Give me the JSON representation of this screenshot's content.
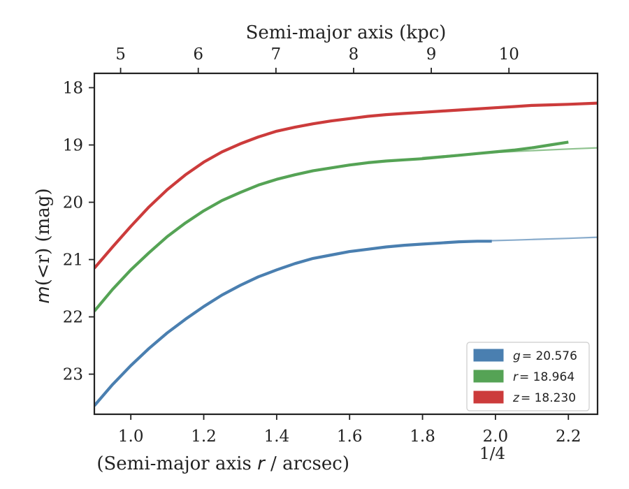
{
  "chart_data": {
    "type": "line",
    "xlabel": "(Semi-major axis r / arcsec)",
    "xlabel_parts": {
      "main": "(Semi-major axis ",
      "var": "r",
      "rest": " / arcsec)",
      "exp": "1/4"
    },
    "ylabel": "m(<r) (mag)",
    "ylabel_parts": {
      "var": "m",
      "rest": "(<r) (mag)"
    },
    "top_xlabel": "Semi-major axis (kpc)",
    "xlim": [
      0.9,
      2.28
    ],
    "ylim": [
      23.7,
      17.75
    ],
    "y_inverted": true,
    "x_ticks": [
      1.0,
      1.2,
      1.4,
      1.6,
      1.8,
      2.0,
      2.2
    ],
    "x_tick_labels": [
      "1.0",
      "1.2",
      "1.4",
      "1.6",
      "1.8",
      "2.0",
      "2.2"
    ],
    "y_ticks": [
      18,
      19,
      20,
      21,
      22,
      23
    ],
    "y_tick_labels": [
      "18",
      "19",
      "20",
      "21",
      "22",
      "23"
    ],
    "top_x_ticks": [
      {
        "label": "5",
        "x": 0.972
      },
      {
        "label": "6",
        "x": 1.185
      },
      {
        "label": "7",
        "x": 1.398
      },
      {
        "label": "8",
        "x": 1.611
      },
      {
        "label": "9",
        "x": 1.824
      },
      {
        "label": "10",
        "x": 2.037
      }
    ],
    "grid": false,
    "legend_position": "bottom-right",
    "series": [
      {
        "name": "g = 20.576",
        "legend_var": "g",
        "legend_value": "= 20.576",
        "color": "#4a7fb0",
        "data": [
          [
            0.9,
            23.55
          ],
          [
            0.95,
            23.18
          ],
          [
            1.0,
            22.85
          ],
          [
            1.05,
            22.55
          ],
          [
            1.1,
            22.28
          ],
          [
            1.15,
            22.04
          ],
          [
            1.2,
            21.82
          ],
          [
            1.25,
            21.62
          ],
          [
            1.3,
            21.45
          ],
          [
            1.35,
            21.3
          ],
          [
            1.4,
            21.18
          ],
          [
            1.45,
            21.07
          ],
          [
            1.5,
            20.98
          ],
          [
            1.55,
            20.92
          ],
          [
            1.6,
            20.86
          ],
          [
            1.65,
            20.82
          ],
          [
            1.7,
            20.78
          ],
          [
            1.75,
            20.75
          ],
          [
            1.8,
            20.73
          ],
          [
            1.85,
            20.71
          ],
          [
            1.9,
            20.69
          ],
          [
            1.95,
            20.68
          ],
          [
            1.99,
            20.68
          ]
        ],
        "model": [
          [
            1.99,
            20.67
          ],
          [
            2.05,
            20.66
          ],
          [
            2.1,
            20.65
          ],
          [
            2.15,
            20.64
          ],
          [
            2.2,
            20.63
          ],
          [
            2.28,
            20.61
          ]
        ]
      },
      {
        "name": "r = 18.964",
        "legend_var": "r",
        "legend_value": "= 18.964",
        "color": "#55a355",
        "data": [
          [
            0.9,
            21.9
          ],
          [
            0.95,
            21.52
          ],
          [
            1.0,
            21.18
          ],
          [
            1.05,
            20.88
          ],
          [
            1.1,
            20.6
          ],
          [
            1.15,
            20.36
          ],
          [
            1.2,
            20.15
          ],
          [
            1.25,
            19.97
          ],
          [
            1.3,
            19.83
          ],
          [
            1.35,
            19.7
          ],
          [
            1.4,
            19.6
          ],
          [
            1.45,
            19.52
          ],
          [
            1.5,
            19.45
          ],
          [
            1.55,
            19.4
          ],
          [
            1.6,
            19.35
          ],
          [
            1.65,
            19.31
          ],
          [
            1.7,
            19.28
          ],
          [
            1.75,
            19.26
          ],
          [
            1.8,
            19.24
          ],
          [
            1.85,
            19.21
          ],
          [
            1.9,
            19.18
          ],
          [
            1.95,
            19.15
          ],
          [
            2.0,
            19.12
          ],
          [
            2.05,
            19.09
          ],
          [
            2.1,
            19.05
          ],
          [
            2.15,
            19.0
          ],
          [
            2.2,
            18.95
          ]
        ],
        "model": [
          [
            1.8,
            19.22
          ],
          [
            1.9,
            19.17
          ],
          [
            2.0,
            19.13
          ],
          [
            2.1,
            19.1
          ],
          [
            2.2,
            19.07
          ],
          [
            2.28,
            19.05
          ]
        ]
      },
      {
        "name": "z = 18.230",
        "legend_var": "z",
        "legend_value": "= 18.230",
        "color": "#cc3b3b",
        "data": [
          [
            0.9,
            21.15
          ],
          [
            0.95,
            20.78
          ],
          [
            1.0,
            20.42
          ],
          [
            1.05,
            20.08
          ],
          [
            1.1,
            19.78
          ],
          [
            1.15,
            19.52
          ],
          [
            1.2,
            19.3
          ],
          [
            1.25,
            19.12
          ],
          [
            1.3,
            18.98
          ],
          [
            1.35,
            18.86
          ],
          [
            1.4,
            18.76
          ],
          [
            1.45,
            18.69
          ],
          [
            1.5,
            18.63
          ],
          [
            1.55,
            18.58
          ],
          [
            1.6,
            18.54
          ],
          [
            1.65,
            18.5
          ],
          [
            1.7,
            18.47
          ],
          [
            1.75,
            18.45
          ],
          [
            1.8,
            18.43
          ],
          [
            1.85,
            18.41
          ],
          [
            1.9,
            18.39
          ],
          [
            1.95,
            18.37
          ],
          [
            2.0,
            18.35
          ],
          [
            2.05,
            18.33
          ],
          [
            2.1,
            18.31
          ],
          [
            2.15,
            18.3
          ],
          [
            2.2,
            18.29
          ],
          [
            2.28,
            18.27
          ]
        ],
        "model": []
      }
    ]
  }
}
